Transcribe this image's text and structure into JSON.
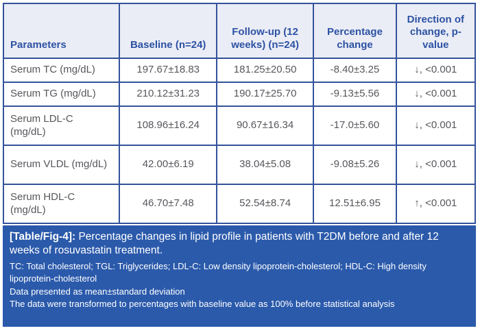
{
  "table": {
    "columns": [
      "Parameters",
      "Baseline (n=24)",
      "Follow-up (12 weeks) (n=24)",
      "Percentage change",
      "Direction of change, p-value"
    ],
    "rows": [
      {
        "parameter": "Serum TC (mg/dL)",
        "baseline": "197.67±18.83",
        "followup": "181.25±20.50",
        "pct_change": "-8.40±3.25",
        "direction": "↓, <0.001"
      },
      {
        "parameter": "Serum TG (mg/dL)",
        "baseline": "210.12±31.23",
        "followup": "190.17±25.70",
        "pct_change": "-9.13±5.56",
        "direction": "↓, <0.001"
      },
      {
        "parameter": "Serum LDL-C (mg/dL)",
        "baseline": "108.96±16.24",
        "followup": "90.67±16.34",
        "pct_change": "-17.0±5.60",
        "direction": "↓, <0.001"
      },
      {
        "parameter": "Serum VLDL (mg/dL)",
        "baseline": "42.00±6.19",
        "followup": "38.04±5.08",
        "pct_change": "-9.08±5.26",
        "direction": "↓, <0.001"
      },
      {
        "parameter": "Serum HDL-C (mg/dL)",
        "baseline": "46.70±7.48",
        "followup": "52.54±8.74",
        "pct_change": "12.51±6.95",
        "direction": "↑, <0.001"
      }
    ]
  },
  "caption": {
    "label": "[Table/Fig-4]:",
    "title": " Percentage changes in lipid profile in patients with T2DM before and after 12 weeks of rosuvastatin treatment.",
    "footnotes": [
      "TC: Total cholesterol; TGL: Triglycerides; LDL-C: Low density lipoprotein-cholesterol; HDL-C: High density lipoprotein-cholesterol",
      "Data presented as mean±standard deviation",
      "The data were transformed to percentages with baseline value as 100% before statistical analysis"
    ]
  },
  "colors": {
    "outer_border": "#2c4a70",
    "inner_border": "#32529b",
    "header_bg": "#ebedf6",
    "header_text": "#2c52a3",
    "body_text": "#56575b",
    "caption_bg": "#2b5aab",
    "caption_text": "#ffffff"
  }
}
